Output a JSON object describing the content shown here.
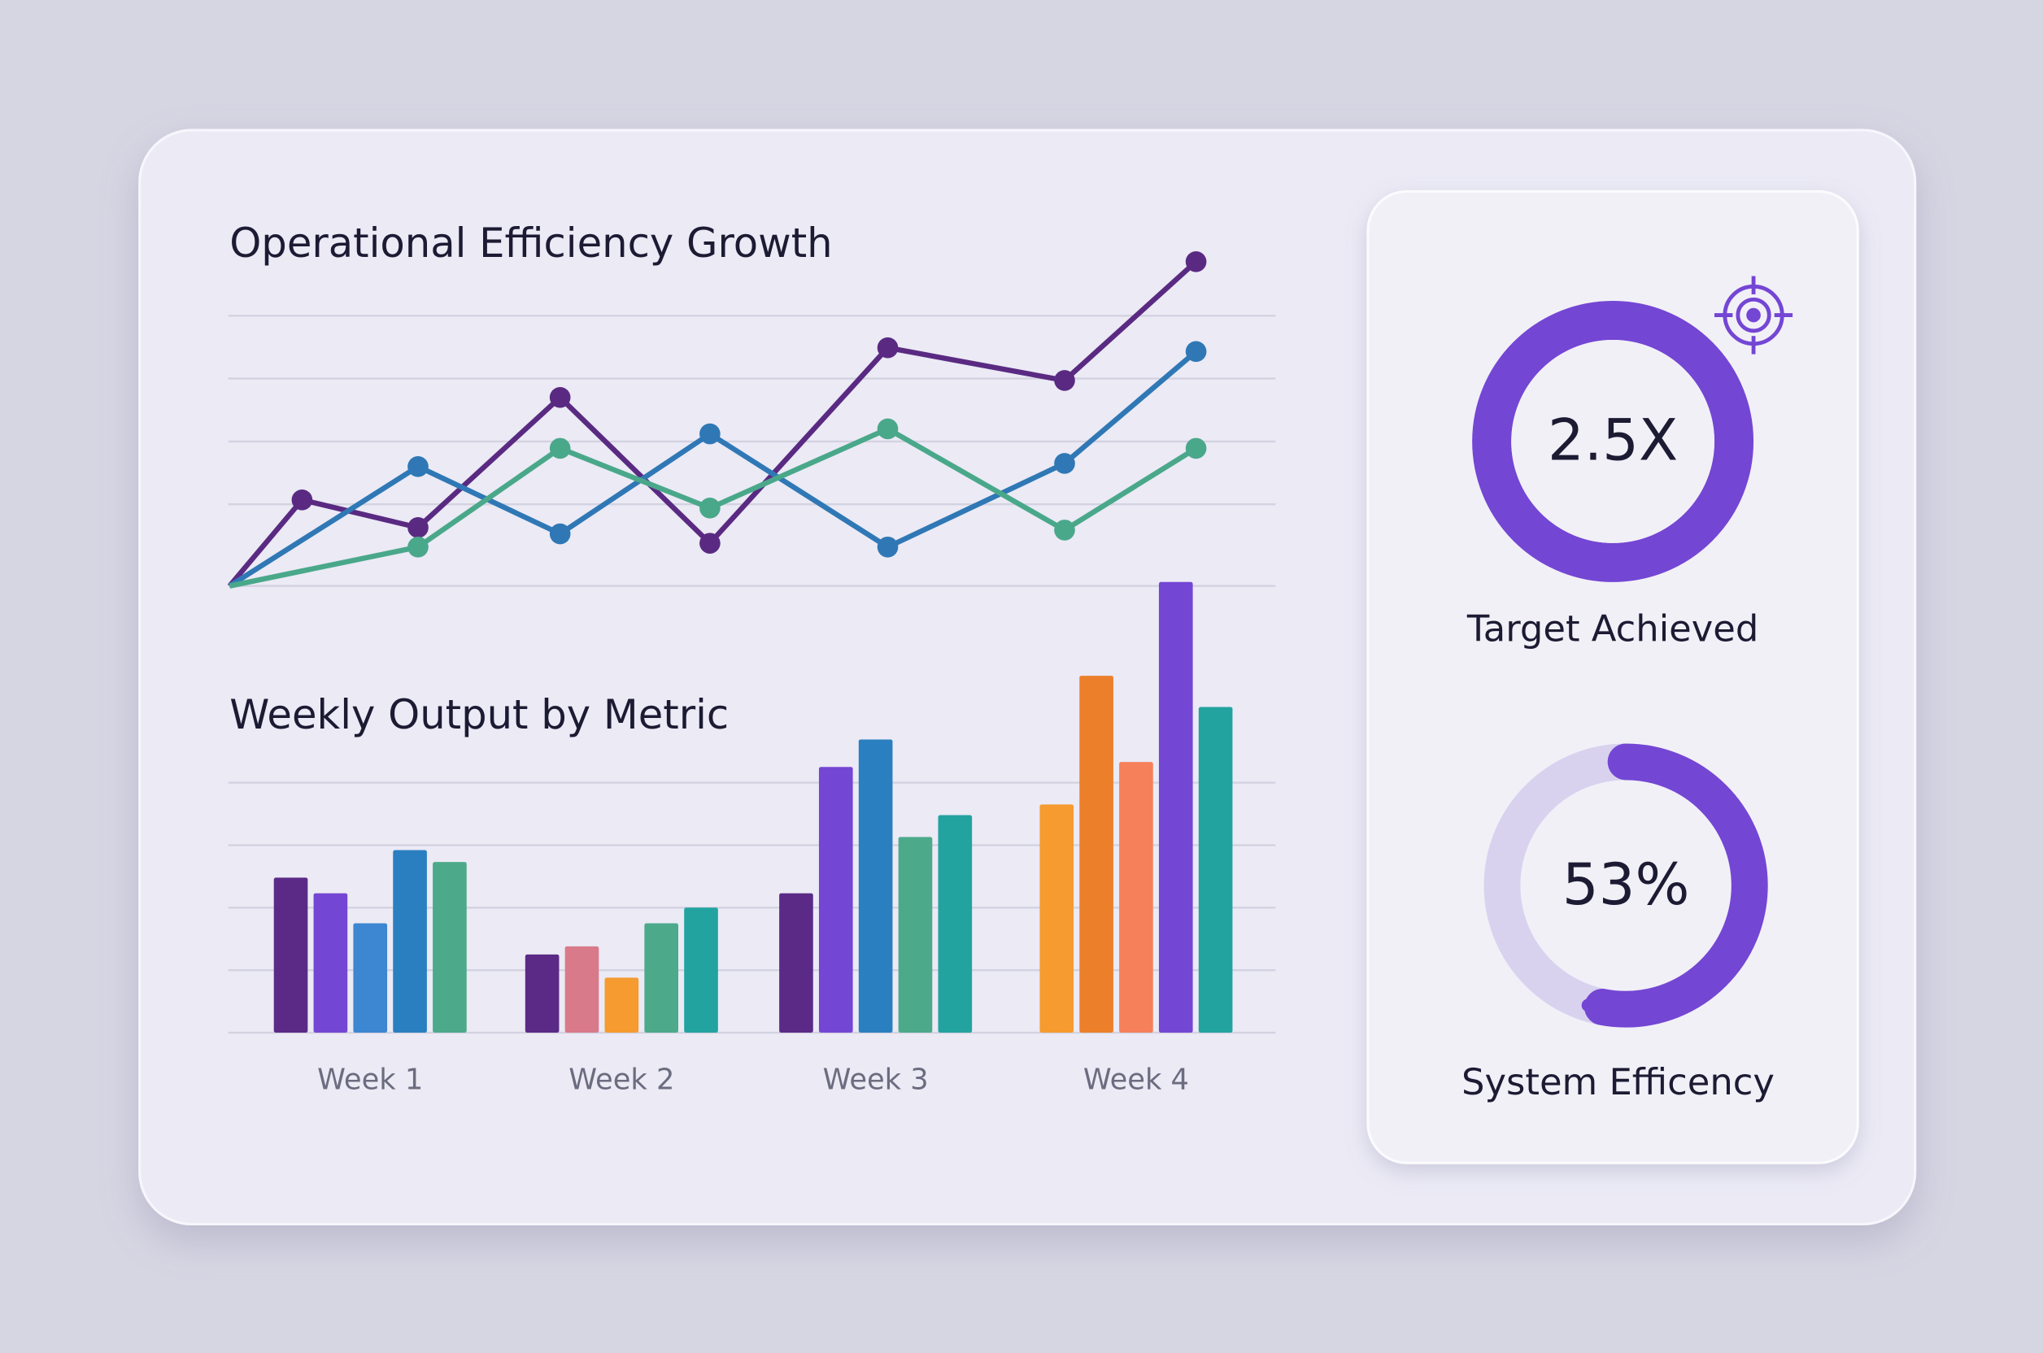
{
  "chart_data": [
    {
      "type": "line",
      "title": "Operational Efficiency Growth",
      "xlim": [
        0,
        10
      ],
      "ylim": [
        0,
        5.2
      ],
      "yticks": [
        0,
        1.3,
        2.3,
        3.3,
        4.3
      ],
      "grid": true,
      "series": [
        {
          "color": "#5a2a82",
          "x": [
            0,
            0.75,
            1.95,
            3.42,
            4.97,
            6.81,
            8.64,
            10
          ],
          "values": [
            0,
            1.37,
            0.93,
            3.0,
            0.68,
            3.79,
            3.27,
            5.16
          ]
        },
        {
          "color": "#2f78b5",
          "x": [
            0,
            1.95,
            3.42,
            4.97,
            6.81,
            8.64,
            10
          ],
          "values": [
            0,
            1.9,
            0.83,
            2.42,
            0.62,
            1.95,
            3.73
          ]
        },
        {
          "color": "#4aa88a",
          "x": [
            0,
            1.95,
            3.42,
            4.97,
            6.81,
            8.64,
            10
          ],
          "values": [
            0,
            0.62,
            2.19,
            1.24,
            2.5,
            0.89,
            2.19
          ]
        }
      ]
    },
    {
      "type": "bar",
      "title": "Weekly Output by Metric",
      "categories": [
        "Week 1",
        "Week 2",
        "Week 3",
        "Week 4"
      ],
      "ylim": [
        0,
        7.5
      ],
      "yticks": [
        0,
        1,
        2,
        3,
        4
      ],
      "grid": true,
      "series": [
        {
          "colors": [
            "#5b2a86",
            "#5b2a86",
            "#5b2a86",
            "#f59b2f"
          ],
          "values": [
            2.48,
            1.25,
            2.23,
            3.65
          ]
        },
        {
          "colors": [
            "#7446d4",
            "#d97a8a",
            "#7446d4",
            "#ec7f2a"
          ],
          "values": [
            2.23,
            1.38,
            4.25,
            5.71
          ]
        },
        {
          "colors": [
            "#3d86d1",
            "#f59b2f",
            "#2a7fc0",
            "#f5805a"
          ],
          "values": [
            1.75,
            0.88,
            4.69,
            4.33
          ]
        },
        {
          "colors": [
            "#2a7fc0",
            "#4caa8a",
            "#4caa8a",
            "#7446d4"
          ],
          "values": [
            2.92,
            1.75,
            3.13,
            7.21
          ]
        },
        {
          "colors": [
            "#4caa8a",
            "#22a3a0",
            "#22a3a0",
            "#22a3a0"
          ],
          "values": [
            2.73,
            2.0,
            3.48,
            5.21
          ]
        }
      ]
    },
    {
      "type": "ring",
      "label": "Target Achieved",
      "values": [
        2.5
      ],
      "value_labels": [
        "2.5X"
      ],
      "color": "#7446d4"
    },
    {
      "type": "donut",
      "label": "System Efficency",
      "values": [
        53
      ],
      "value_labels": [
        "53%"
      ],
      "color": "#7446d4",
      "track_color": "#d8d2ef"
    }
  ]
}
